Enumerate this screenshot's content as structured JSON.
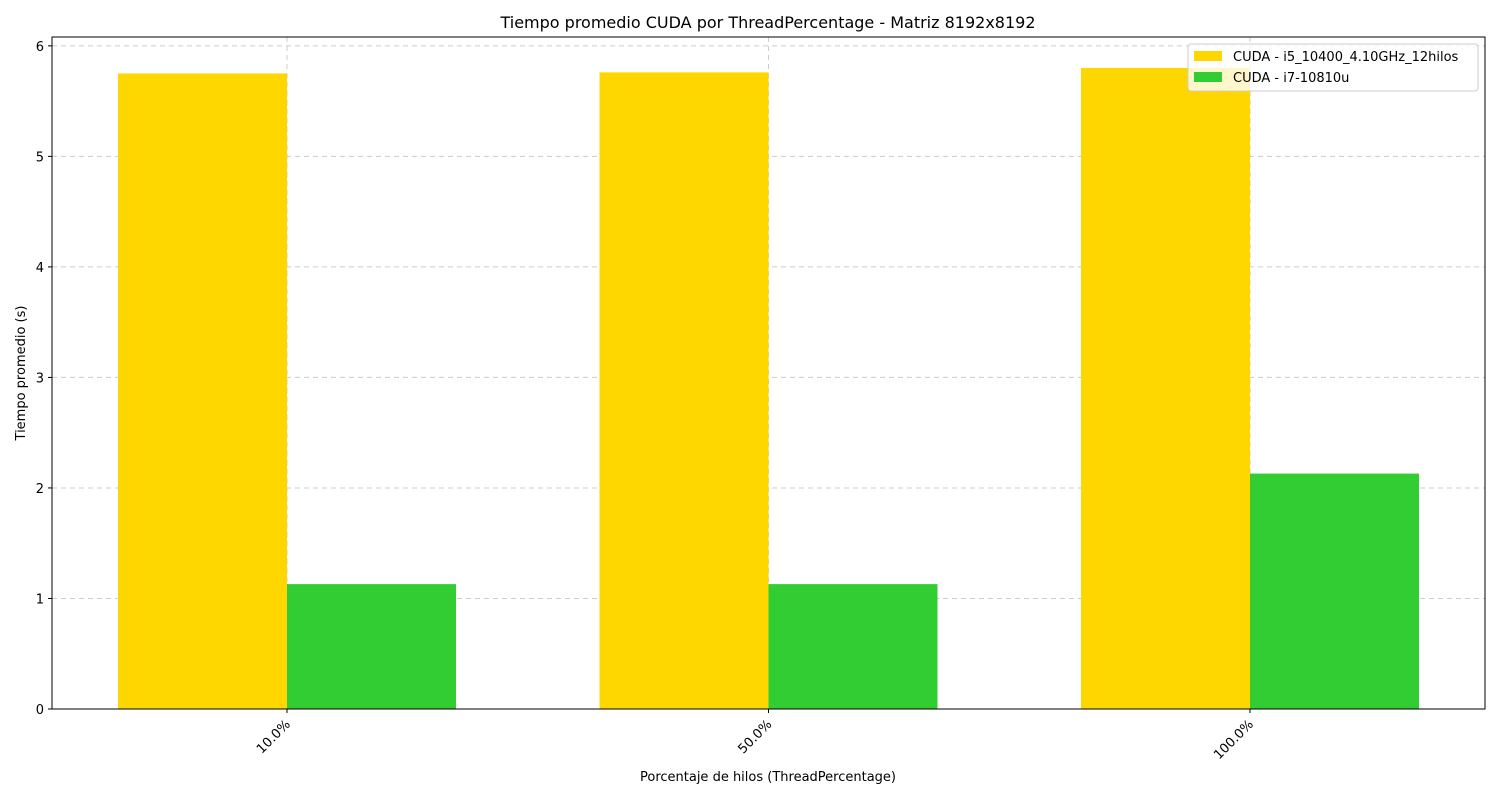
{
  "chart_data": {
    "type": "bar",
    "title": "Tiempo promedio CUDA por ThreadPercentage - Matriz 8192x8192",
    "xlabel": "Porcentaje de hilos (ThreadPercentage)",
    "ylabel": "Tiempo promedio (s)",
    "categories": [
      "10.0%",
      "50.0%",
      "100.0%"
    ],
    "series": [
      {
        "name": "CUDA - i5_10400_4.10GHz_12hilos",
        "color": "#FFD700",
        "values": [
          5.75,
          5.76,
          5.8
        ]
      },
      {
        "name": "CUDA - i7-10810u",
        "color": "#32CD32",
        "values": [
          1.13,
          1.13,
          2.13
        ]
      }
    ],
    "ylim": [
      0,
      6.08
    ],
    "yticks": [
      0,
      1,
      2,
      3,
      4,
      5,
      6
    ],
    "ytick_labels": [
      "0",
      "1",
      "2",
      "3",
      "4",
      "5",
      "6"
    ],
    "grid": true,
    "legend_position": "top-right",
    "xtick_rotation": "45deg"
  }
}
